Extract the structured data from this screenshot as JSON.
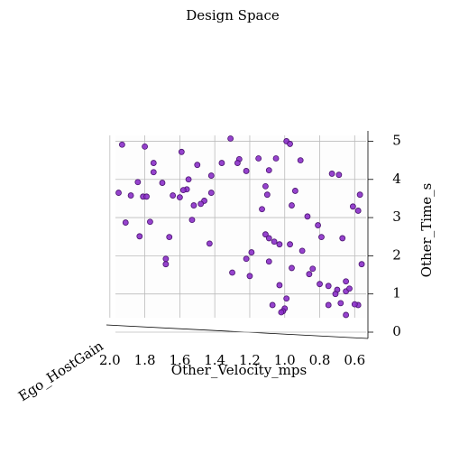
{
  "chart_data": {
    "type": "scatter",
    "title": "Design Space",
    "x_label": "Other_Velocity_mps",
    "y_label": "Other_Time_s",
    "z_label": "Ego_HostGain",
    "xlim": [
      2.03,
      0.55
    ],
    "ylim": [
      0,
      5.2
    ],
    "xticks": [
      {
        "value": 2.0,
        "label": "2.0"
      },
      1.8,
      1.6,
      1.4,
      1.2,
      {
        "value": 1.0,
        "label": "1.0"
      },
      0.8,
      0.6
    ],
    "yticks": [
      0,
      1,
      2,
      3,
      4,
      5
    ],
    "grid": true,
    "color": "#8b2fc9",
    "series": [
      {
        "name": null,
        "color": "#8b2fc9",
        "x": [
          1.93,
          1.8,
          1.59,
          1.75,
          0.99,
          0.97,
          1.31,
          1.26,
          1.27,
          1.15,
          1.05,
          0.91,
          1.36,
          1.5,
          1.75,
          1.84,
          1.7,
          1.55,
          1.42,
          1.56,
          0.73,
          0.69,
          1.09,
          1.95,
          1.88,
          1.81,
          1.79,
          1.64,
          1.58,
          1.6,
          1.46,
          1.48,
          1.11,
          1.1,
          0.94,
          0.57,
          0.96,
          1.42,
          1.52,
          1.13,
          0.61,
          0.58,
          1.91,
          1.77,
          1.53,
          0.87,
          1.83,
          1.66,
          0.81,
          1.43,
          1.11,
          1.09,
          1.06,
          1.03,
          0.97,
          0.9,
          0.79,
          0.67,
          1.68,
          1.68,
          1.19,
          1.22,
          1.09,
          0.96,
          1.3,
          0.84,
          0.86,
          0.8,
          0.75,
          0.7,
          0.65,
          0.63,
          0.71,
          0.56,
          1.2,
          1.03,
          0.58,
          1.07,
          0.99,
          1.0,
          1.01,
          1.02,
          0.75,
          0.68,
          0.65,
          0.6,
          0.65,
          1.22
        ],
        "values": [
          4.91,
          4.86,
          4.72,
          4.43,
          5.0,
          4.93,
          5.07,
          4.53,
          4.43,
          4.55,
          4.55,
          4.5,
          4.43,
          4.38,
          4.19,
          3.93,
          3.91,
          4.0,
          4.1,
          3.74,
          4.15,
          4.12,
          4.24,
          3.65,
          3.58,
          3.55,
          3.55,
          3.58,
          3.72,
          3.53,
          3.44,
          3.36,
          3.82,
          3.6,
          3.7,
          3.6,
          3.32,
          3.65,
          3.32,
          3.22,
          3.29,
          3.18,
          2.87,
          2.89,
          2.94,
          3.03,
          2.51,
          2.49,
          2.8,
          2.32,
          2.56,
          2.46,
          2.37,
          2.3,
          2.3,
          2.13,
          2.49,
          2.46,
          1.92,
          1.78,
          2.09,
          1.92,
          1.85,
          1.68,
          1.56,
          1.66,
          1.52,
          1.26,
          1.21,
          1.11,
          1.07,
          1.14,
          1.0,
          1.78,
          1.47,
          1.23,
          0.71,
          0.71,
          0.88,
          0.62,
          0.55,
          0.52,
          0.71,
          0.76,
          0.45,
          0.73,
          1.33,
          4.22
        ]
      }
    ]
  }
}
